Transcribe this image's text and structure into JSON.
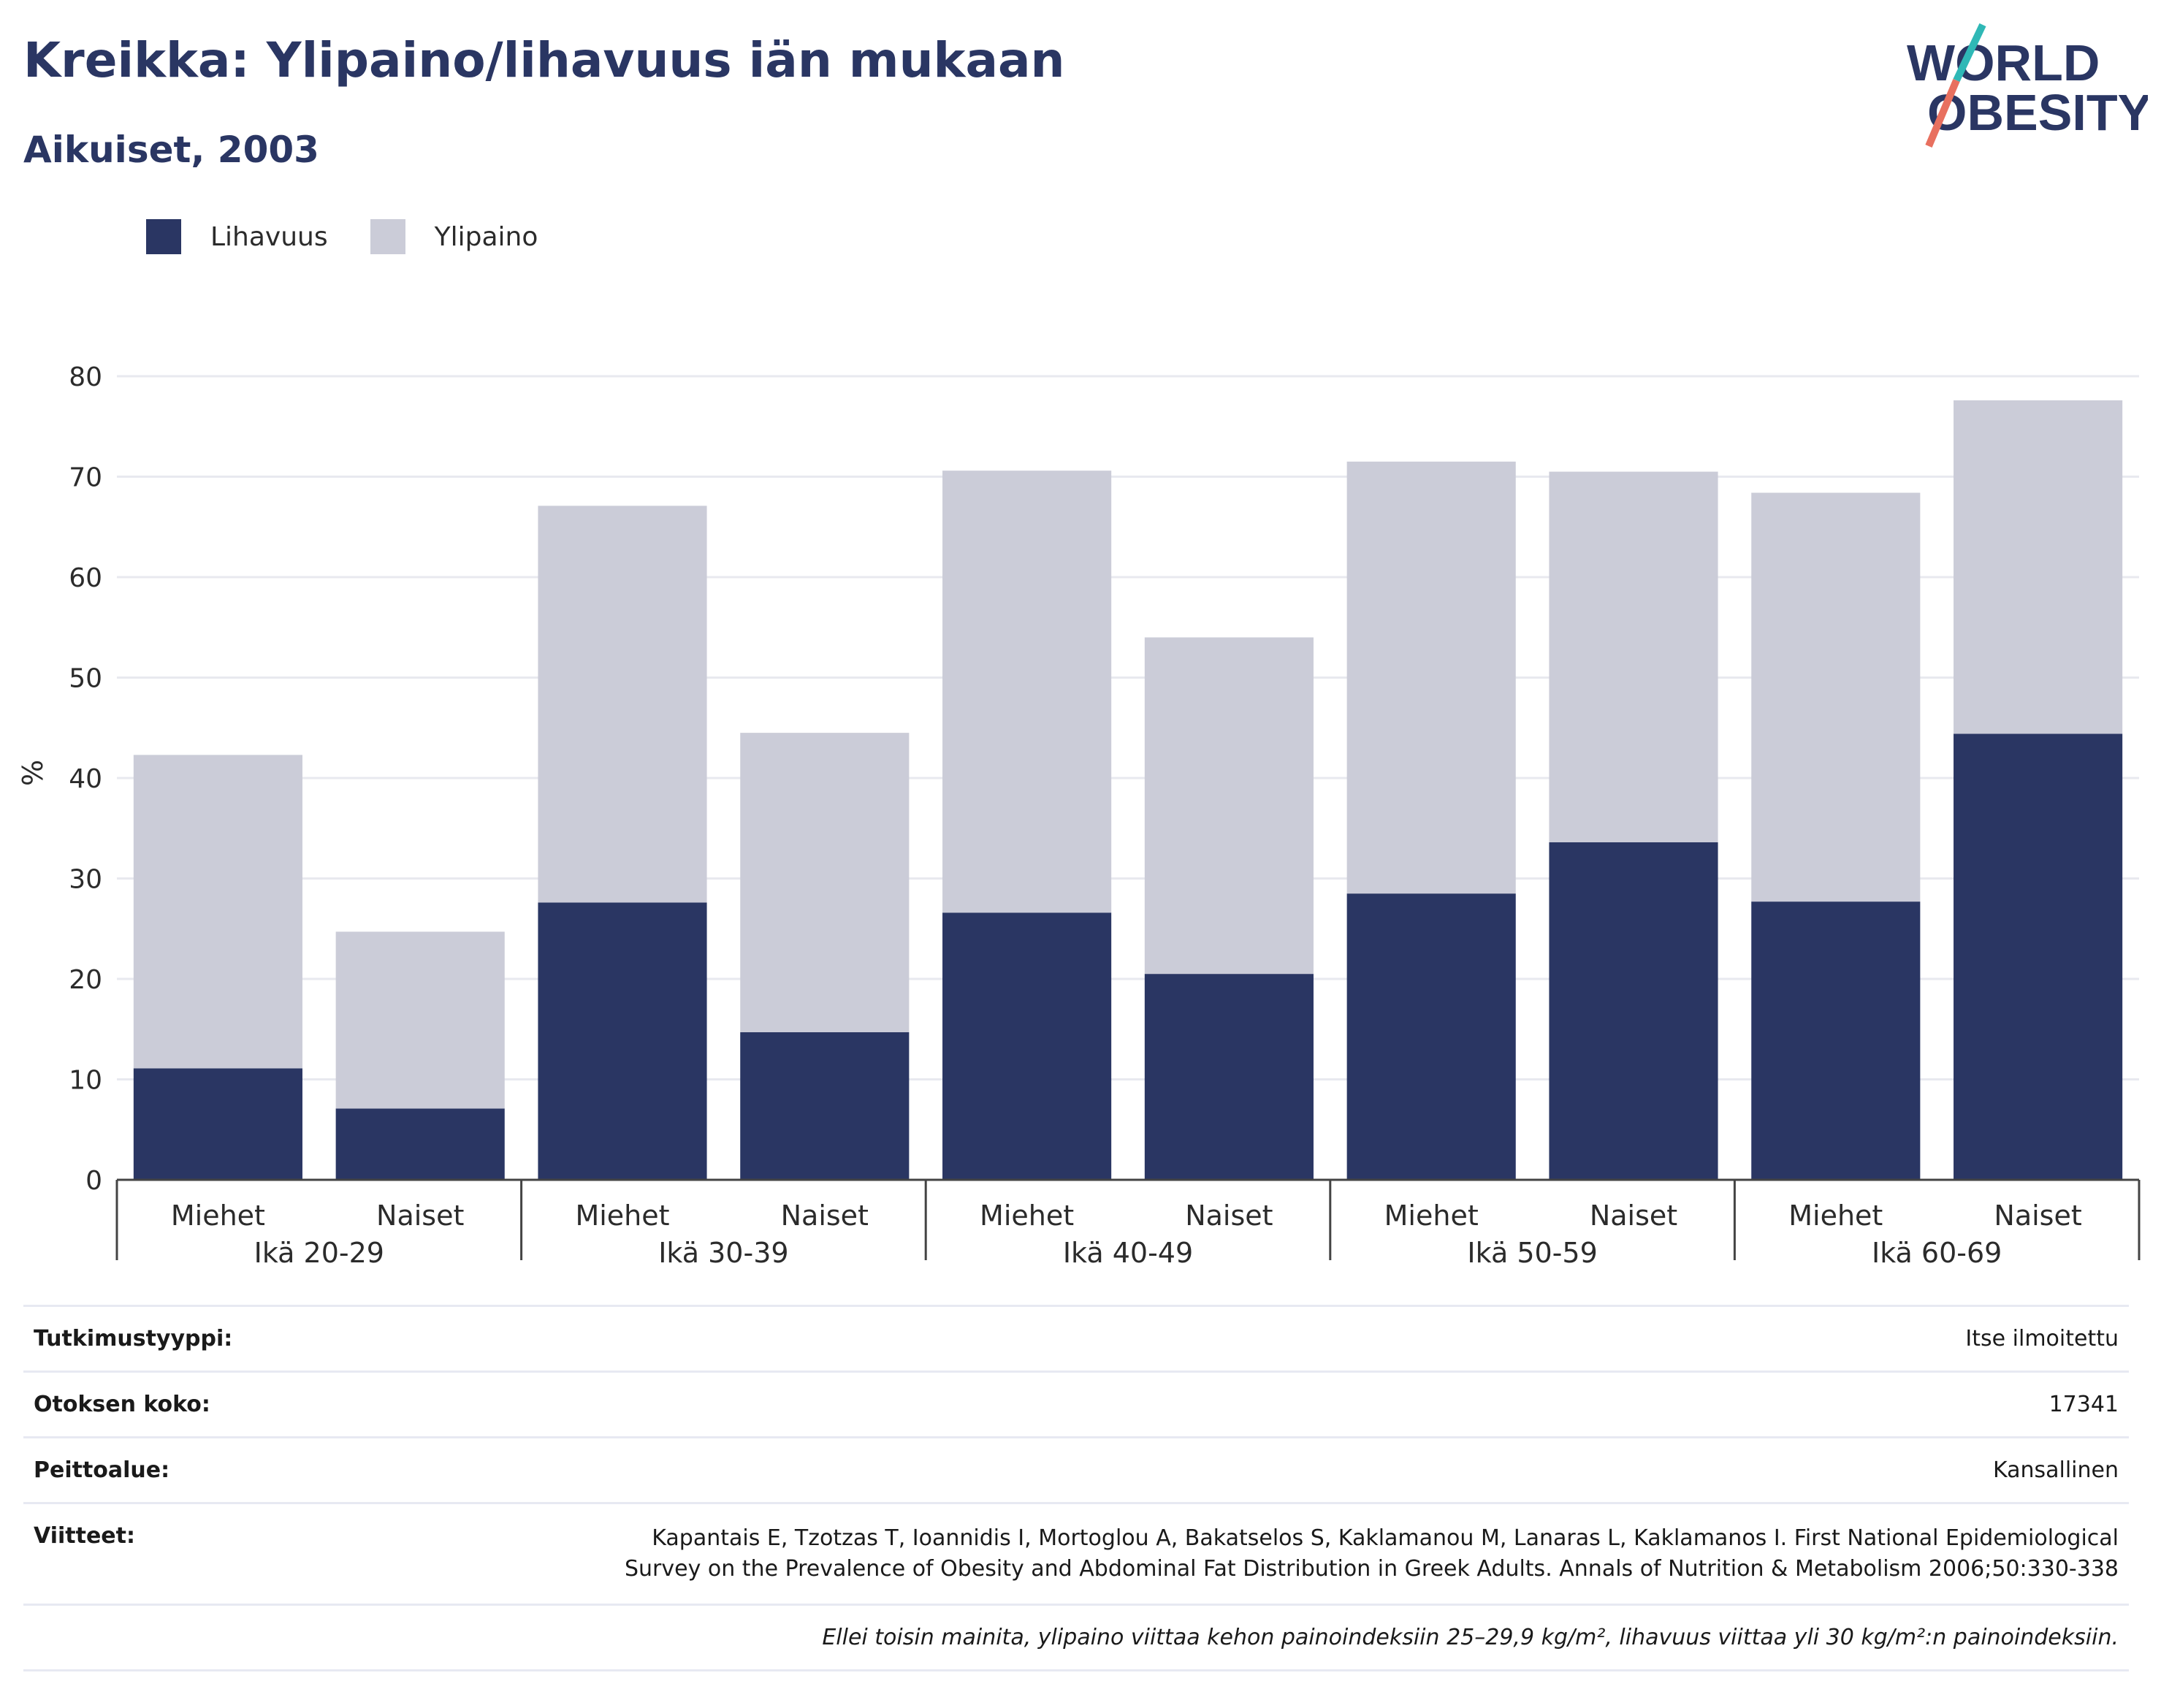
{
  "header": {
    "title": "Kreikka: Ylipaino/lihavuus iän mukaan",
    "subtitle": "Aikuiset, 2003"
  },
  "logo": {
    "line1": "WORLD",
    "line2": "OBESITY",
    "icon": "world-obesity-slash-logo"
  },
  "colors": {
    "obesity": "#2a3663",
    "overweight": "#cbccd8",
    "text": "#2a3663",
    "accent_teal": "#2fb8b6",
    "accent_red": "#e8705f"
  },
  "chart_data": {
    "type": "bar",
    "stacked": true,
    "title": "",
    "ylabel": "%",
    "xlabel": "",
    "ylim": [
      0,
      80
    ],
    "yticks": [
      0,
      10,
      20,
      30,
      40,
      50,
      60,
      70,
      80
    ],
    "grid": true,
    "legend_position": "top-left",
    "groups": [
      "Ikä 20-29",
      "Ikä 30-39",
      "Ikä 40-49",
      "Ikä 50-59",
      "Ikä 60-69"
    ],
    "categories": [
      "Miehet",
      "Naiset",
      "Miehet",
      "Naiset",
      "Miehet",
      "Naiset",
      "Miehet",
      "Naiset",
      "Miehet",
      "Naiset"
    ],
    "series": [
      {
        "name": "Lihavuus",
        "values": [
          11.1,
          7.1,
          27.6,
          14.7,
          26.6,
          20.5,
          28.5,
          33.6,
          27.7,
          44.4
        ]
      },
      {
        "name": "Ylipaino",
        "values": [
          31.2,
          17.6,
          39.5,
          29.8,
          44.0,
          33.5,
          43.0,
          36.9,
          40.7,
          33.2
        ]
      }
    ]
  },
  "info": {
    "study_type_label": "Tutkimustyyppi:",
    "study_type_value": "Itse ilmoitettu",
    "sample_size_label": "Otoksen koko:",
    "sample_size_value": "17341",
    "coverage_label": "Peittoalue:",
    "coverage_value": "Kansallinen",
    "references_label": "Viitteet:",
    "references_value": "Kapantais E, Tzotzas T, Ioannidis I, Mortoglou A, Bakatselos S, Kaklamanou M, Lanaras L, Kaklamanos I. First National Epidemiological Survey on the Prevalence of Obesity and Abdominal Fat Distribution in Greek Adults. Annals of Nutrition & Metabolism 2006;50:330-338",
    "footnote": "Ellei toisin mainita, ylipaino viittaa kehon painoindeksiin 25–29,9 kg/m², lihavuus viittaa yli 30 kg/m²:n painoindeksiin."
  }
}
